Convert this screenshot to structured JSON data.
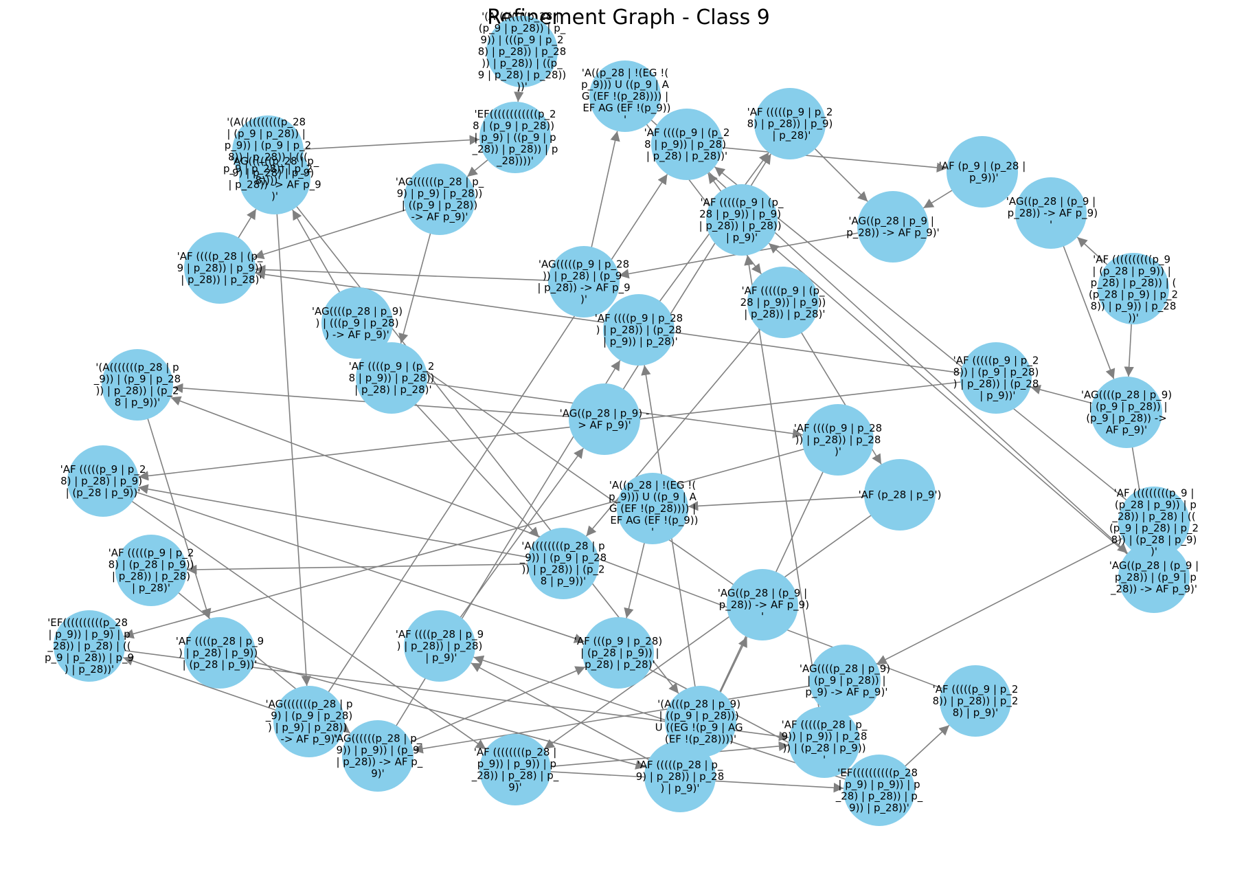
{
  "title": "Refinement Graph - Class 9",
  "colors": {
    "node": "#87ceeb",
    "edge": "#808080",
    "text": "#000000",
    "background": "#ffffff"
  },
  "nodes": [
    {
      "id": "n1",
      "label": "'(A((((((((p_28 | (p_9 | p_28)) | p_9)) | (((p_9 | p_28) | p_28)) | p_28)) | p_28)) | ((p_9 | p_28) | p_28))))'"
    },
    {
      "id": "n2",
      "label": "'A((p_28 | !(EG !(p_9))) U ((p_9 | AG (EF !(p_28)))) | EF AG (EF !(p_9))'"
    },
    {
      "id": "n3",
      "label": "'EF((((((((((((p_28 | (p_9 | p_28)) | p_9) | ((p_9 | p_28)) | p_28)) | p_28))))'"
    },
    {
      "id": "n4",
      "label": "'(A((((((((((p_28 | (p_9 | p_28)) | p_9)) | (p_9 | p_28)) | p_28)) | (((p_9 | p_28)) | p_28))))'"
    },
    {
      "id": "n5",
      "label": "'AF (p_9 | (p_28 | p_9))'"
    },
    {
      "id": "n6",
      "label": "'AG((p_28 | (p_9 | p_28)) -> AF p_9)'"
    },
    {
      "id": "n7",
      "label": "'AG((p_28 | p_9 | p_28)) -> AF p_9)'"
    },
    {
      "id": "n8",
      "label": "'AF ((((((((((p_9 | (p_28 | p_9)) | p_28) | p_28)) | ((p_28 | p_9) | p_28)) | p_9)) | p_28))'"
    },
    {
      "id": "n9",
      "label": "'AF (((((p_9 | (p_28 | p_9)) | p_9)) | p_28)) | p_28)'"
    },
    {
      "id": "n10",
      "label": "'AG(((((p_9 | p_28)) | p_28) | (p_9 | p_28)) -> AF p_9)'"
    },
    {
      "id": "n11",
      "label": "'AG((((((p_28 | p_9) | p_9) | p_28)) | ((p_9 | p_28)) -> AF p_9)'"
    },
    {
      "id": "n12",
      "label": "'AF ((((p_9 | (p_28 | p_9)) | p_28)) | p_28) | p_28)'"
    },
    {
      "id": "n13",
      "label": "'AF (p_28 | p_9')"
    },
    {
      "id": "n14",
      "label": "'AF (((((((((p_9 | (p_28 | p_9)) | p_28)) | p_28) | (((p_9 | p_28) | p_28)) | (p_28 | p_9))'"
    },
    {
      "id": "n15",
      "label": "'AG((((p_28 | p_9) | (p_9 | p_28)) | (p_9 | p_28)) -> AF p_9)'"
    },
    {
      "id": "n16",
      "label": "'AF (((((p_9 | p_28)) | (p_9 | p_28)) | p_28)) | (p_28 | p_9))'"
    },
    {
      "id": "n17",
      "label": "'A((p_28 | !(EG !(p_9))) U ((p_9 | AG (EF !(p_28)))) | EF AG (EF !(p_9))'"
    },
    {
      "id": "n18",
      "label": "'AF ((((p_9 | p_28)) | p_28)) | p_28)'"
    },
    {
      "id": "n19",
      "label": "'AG((p_28 | (p_9 | p_28)) | (p_9 | p_28)) -> AF p_9)'"
    },
    {
      "id": "n20",
      "label": "'A((((((((p_28 | p_9)) | (p_9 | p_28)) | p_28)) | (p_28 | p_9))'"
    },
    {
      "id": "n21",
      "label": "'AG((((p_28 | p_9)) | (((p_9 | p_28)) -> AF p_9)'"
    },
    {
      "id": "n22",
      "label": "'AF ((((p_28 | (p_9 | p_28)) | p_9)) | p_28)) | p_28)'"
    },
    {
      "id": "n23",
      "label": "'(A(((((((p_28 | p_9)) | (p_9 | p_28)) | p_28)) | (p_28 | p_9))'"
    },
    {
      "id": "n24",
      "label": "'AF (((((p_9 | p_28) | p_28) | p_9) | (p_28 | p_9))'"
    },
    {
      "id": "n25",
      "label": "'EF((((((((((p_28 | p_9)) | p_9) | p_28)) | p_28) | ((p_9 | p_28)) | p_9) | p_28))'"
    },
    {
      "id": "n26",
      "label": "'AG((((((p_28 | p_9) | p_28) | p_9) | p_28)) -> AF p_9)'"
    },
    {
      "id": "n27",
      "label": "'AF (((((p_9 | p_28) | (p_28 | p_9)) | p_28)) | p_28) | p_28)'"
    },
    {
      "id": "n28",
      "label": "'AF ((((p_28 | p_9) | p_28) | p_9)) | (p_28 | p_9))'"
    },
    {
      "id": "n29",
      "label": "'AF (((p_9 | p_28) | (p_28 | p_9)) | p_28) | p_28)'"
    },
    {
      "id": "n30",
      "label": "'AG(((((((p_28 | p_9) | (p_9 | p_28)) | p_9) | p_28)) -> AF p_9)'"
    },
    {
      "id": "n31",
      "label": "'AF ((((((((p_28 | p_9)) | p_9)) | p_28)) | p_28) | p_9)'"
    },
    {
      "id": "n32",
      "label": "'(A(((p_28 | p_9) | ((p_9 | p_28))) U ((EG !(p_9 | AG (EF !(p_28))))'"
    },
    {
      "id": "n33",
      "label": "'AF (((((p_28 | p_9)) | p_9)) | p_28)) | (p_28 | p_9))'"
    },
    {
      "id": "n34",
      "label": "'EF((((((((((p_28 | p_9) | p_9)) | p_28) | p_28)) | p_9)) | p_28))'"
    },
    {
      "id": "n35",
      "label": "'AF (((((p_9 | p_28)) | p_28)) | p_28) | p_9)'"
    },
    {
      "id": "n36",
      "label": "'AF (((((p_28 | p_9) | p_28)) | p_28) | p_9)'"
    },
    {
      "id": "n37",
      "label": "'AG((p_28 | (p_9 | p_28)) -> AF p_9)'"
    },
    {
      "id": "n38",
      "label": "'AG((((p_28 | p_9) | (p_9 | p_28)) | p_9) -> AF p_9)'"
    },
    {
      "id": "n39",
      "label": "'AF ((((p_28 | p_9) | p_28)) | p_28) | p_9)'"
    },
    {
      "id": "n40",
      "label": "'AG((((((p_28 | p_9)) | p_9)) | (p_9 | p_28)) -> AF p_9)'"
    },
    {
      "id": "n41",
      "label": "'AF ((((p_9 | p_28) | p_28)) | (p_28 | p_9)) | p_28)'"
    },
    {
      "id": "n42",
      "label": "'AF (((((p_9 | (p_28 | p_9)) | p_9) | p_28)) | p_28)) | p_9)'"
    },
    {
      "id": "n43",
      "label": "'AG((p_28 | p_9) -> AF p_9)'"
    },
    {
      "id": "n44",
      "label": "'AF ((((p_9 | (p_28 | p_9)) | p_28) | p_28) | p_28))'"
    },
    {
      "id": "n45",
      "label": "'AF (((((p_9 | p_28) | p_28)) | p_9) | p_28)'"
    }
  ],
  "edges": [
    [
      "n1",
      "n3"
    ],
    [
      "n2",
      "n9"
    ],
    [
      "n4",
      "n3"
    ],
    [
      "n5",
      "n7"
    ],
    [
      "n6",
      "n15"
    ],
    [
      "n8",
      "n6"
    ],
    [
      "n9",
      "n13"
    ],
    [
      "n10",
      "n22"
    ],
    [
      "n11",
      "n12"
    ],
    [
      "n12",
      "n20"
    ],
    [
      "n13",
      "n17"
    ],
    [
      "n14",
      "n38"
    ],
    [
      "n15",
      "n19"
    ],
    [
      "n16",
      "n22"
    ],
    [
      "n17",
      "n29"
    ],
    [
      "n18",
      "n25"
    ],
    [
      "n19",
      "n14"
    ],
    [
      "n20",
      "n24"
    ],
    [
      "n21",
      "n26"
    ],
    [
      "n22",
      "n26"
    ],
    [
      "n23",
      "n28"
    ],
    [
      "n24",
      "n31"
    ],
    [
      "n25",
      "n33"
    ],
    [
      "n26",
      "n30"
    ],
    [
      "n27",
      "n40"
    ],
    [
      "n28",
      "n36"
    ],
    [
      "n29",
      "n34"
    ],
    [
      "n30",
      "n44"
    ],
    [
      "n31",
      "n34"
    ],
    [
      "n32",
      "n41"
    ],
    [
      "n33",
      "n42"
    ],
    [
      "n34",
      "n39"
    ],
    [
      "n35",
      "n23"
    ],
    [
      "n36",
      "n37"
    ],
    [
      "n37",
      "n21"
    ],
    [
      "n38",
      "n40"
    ],
    [
      "n39",
      "n43"
    ],
    [
      "n40",
      "n41"
    ],
    [
      "n41",
      "n45"
    ],
    [
      "n42",
      "n44"
    ],
    [
      "n43",
      "n45"
    ],
    [
      "n44",
      "n5"
    ],
    [
      "n45",
      "n7"
    ],
    [
      "n3",
      "n11"
    ],
    [
      "n7",
      "n10"
    ],
    [
      "n12",
      "n18"
    ],
    [
      "n2",
      "n19"
    ],
    [
      "n15",
      "n16"
    ],
    [
      "n20",
      "n27"
    ],
    [
      "n26",
      "n32"
    ],
    [
      "n34",
      "n35"
    ],
    [
      "n9",
      "n20"
    ],
    [
      "n31",
      "n33"
    ],
    [
      "n24",
      "n29"
    ],
    [
      "n11",
      "n22"
    ],
    [
      "n18",
      "n36"
    ],
    [
      "n10",
      "n2"
    ],
    [
      "n30",
      "n25"
    ],
    [
      "n21",
      "n12"
    ],
    [
      "n40",
      "n29"
    ],
    [
      "n14",
      "n44"
    ],
    [
      "n19",
      "n42"
    ],
    [
      "n43",
      "n23"
    ],
    [
      "n16",
      "n24"
    ],
    [
      "n13",
      "n31"
    ],
    [
      "n36",
      "n39"
    ],
    [
      "n8",
      "n15"
    ]
  ]
}
